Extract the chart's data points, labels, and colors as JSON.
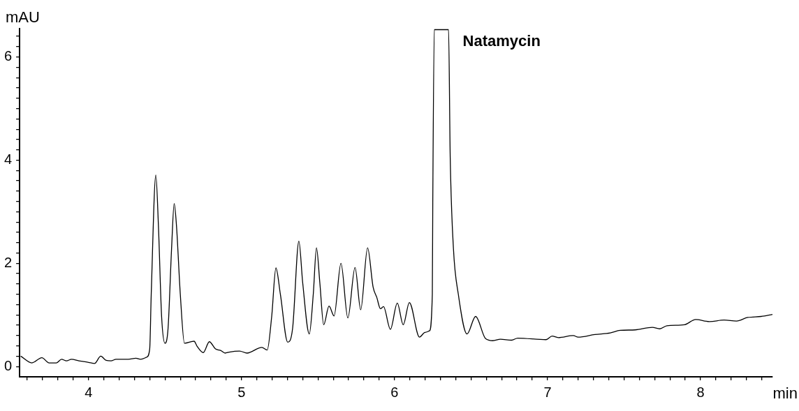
{
  "chart_data": {
    "type": "line",
    "xlabel": "min",
    "ylabel": "mAU",
    "x": [
      3.557,
      3.63,
      3.695,
      3.743,
      3.79,
      3.824,
      3.856,
      3.889,
      3.937,
      4.0,
      4.04,
      4.08,
      4.115,
      4.147,
      4.18,
      4.26,
      4.31,
      4.34,
      4.38,
      4.4,
      4.41,
      4.44,
      4.457,
      4.478,
      4.5,
      4.52,
      4.543,
      4.56,
      4.575,
      4.6,
      4.627,
      4.69,
      4.71,
      4.75,
      4.79,
      4.83,
      4.865,
      4.893,
      4.92,
      4.987,
      5.036,
      5.133,
      5.168,
      5.197,
      5.225,
      5.254,
      5.302,
      5.334,
      5.375,
      5.4,
      5.443,
      5.469,
      5.49,
      5.512,
      5.537,
      5.572,
      5.605,
      5.65,
      5.695,
      5.742,
      5.779,
      5.824,
      5.86,
      5.884,
      5.908,
      5.928,
      5.973,
      6.018,
      6.057,
      6.097,
      6.163,
      6.199,
      6.228,
      6.247,
      6.25,
      6.26,
      6.353,
      6.364,
      6.385,
      6.417,
      6.474,
      6.53,
      6.595,
      6.643,
      6.692,
      6.765,
      6.805,
      6.99,
      7.03,
      7.07,
      7.168,
      7.2,
      7.31,
      7.41,
      7.475,
      7.572,
      7.685,
      7.733,
      7.78,
      7.895,
      7.968,
      8.057,
      8.154,
      8.235,
      8.308,
      8.396,
      8.47
    ],
    "values": [
      0.2,
      0.07,
      0.17,
      0.07,
      0.07,
      0.14,
      0.11,
      0.14,
      0.11,
      0.08,
      0.06,
      0.2,
      0.12,
      0.11,
      0.14,
      0.14,
      0.16,
      0.14,
      0.18,
      0.34,
      1.4,
      3.71,
      2.73,
      0.96,
      0.45,
      0.74,
      2.29,
      3.16,
      2.73,
      1.4,
      0.45,
      0.49,
      0.39,
      0.27,
      0.48,
      0.34,
      0.31,
      0.26,
      0.28,
      0.3,
      0.26,
      0.37,
      0.32,
      0.96,
      1.91,
      1.4,
      0.47,
      0.74,
      2.43,
      1.62,
      0.63,
      1.4,
      2.3,
      1.62,
      0.81,
      1.17,
      0.98,
      2.0,
      0.94,
      1.92,
      1.1,
      2.3,
      1.54,
      1.34,
      1.12,
      1.16,
      0.72,
      1.23,
      0.81,
      1.24,
      0.57,
      0.66,
      0.69,
      1.4,
      3.17,
      6.53,
      6.53,
      4.05,
      2.29,
      1.4,
      0.63,
      0.97,
      0.54,
      0.5,
      0.53,
      0.51,
      0.55,
      0.52,
      0.59,
      0.56,
      0.6,
      0.57,
      0.62,
      0.65,
      0.7,
      0.71,
      0.76,
      0.73,
      0.79,
      0.81,
      0.91,
      0.87,
      0.9,
      0.88,
      0.95,
      0.97,
      1.01
    ],
    "color": "#000000",
    "marker": "none",
    "line_style": "solid",
    "grid": false,
    "legend": false,
    "xlim": [
      3.55,
      8.47
    ],
    "ylim": [
      -0.2,
      6.55
    ],
    "xticks": [
      {
        "value": 3.6,
        "label": null
      },
      {
        "value": 3.7,
        "label": null
      },
      {
        "value": 3.8,
        "label": null
      },
      {
        "value": 3.9,
        "label": null
      },
      4,
      {
        "value": 4.1,
        "label": null
      },
      {
        "value": 4.2,
        "label": null
      },
      {
        "value": 4.3,
        "label": null
      },
      {
        "value": 4.4,
        "label": null
      },
      {
        "value": 4.5,
        "label": null
      },
      {
        "value": 4.6,
        "label": null
      },
      {
        "value": 4.7,
        "label": null
      },
      {
        "value": 4.8,
        "label": null
      },
      {
        "value": 4.9,
        "label": null
      },
      5,
      {
        "value": 5.1,
        "label": null
      },
      {
        "value": 5.2,
        "label": null
      },
      {
        "value": 5.3,
        "label": null
      },
      {
        "value": 5.4,
        "label": null
      },
      {
        "value": 5.5,
        "label": null
      },
      {
        "value": 5.6,
        "label": null
      },
      {
        "value": 5.7,
        "label": null
      },
      {
        "value": 5.8,
        "label": null
      },
      {
        "value": 5.9,
        "label": null
      },
      6,
      {
        "value": 6.1,
        "label": null
      },
      {
        "value": 6.2,
        "label": null
      },
      {
        "value": 6.3,
        "label": null
      },
      {
        "value": 6.4,
        "label": null
      },
      {
        "value": 6.5,
        "label": null
      },
      {
        "value": 6.6,
        "label": null
      },
      {
        "value": 6.7,
        "label": null
      },
      {
        "value": 6.8,
        "label": null
      },
      {
        "value": 6.9,
        "label": null
      },
      7,
      {
        "value": 7.1,
        "label": null
      },
      {
        "value": 7.2,
        "label": null
      },
      {
        "value": 7.3,
        "label": null
      },
      {
        "value": 7.4,
        "label": null
      },
      {
        "value": 7.5,
        "label": null
      },
      {
        "value": 7.6,
        "label": null
      },
      {
        "value": 7.7,
        "label": null
      },
      {
        "value": 7.8,
        "label": null
      },
      {
        "value": 7.9,
        "label": null
      },
      8,
      {
        "value": 8.1,
        "label": null
      },
      {
        "value": 8.2,
        "label": null
      },
      {
        "value": 8.3,
        "label": null
      },
      {
        "value": 8.4,
        "label": null
      }
    ],
    "yticks": [
      0,
      {
        "value": 0.2,
        "label": null
      },
      {
        "value": 0.4,
        "label": null
      },
      {
        "value": 0.6,
        "label": null
      },
      {
        "value": 0.8,
        "label": null
      },
      {
        "value": 1,
        "label": null
      },
      {
        "value": 1.2,
        "label": null
      },
      {
        "value": 1.4,
        "label": null
      },
      {
        "value": 1.6,
        "label": null
      },
      {
        "value": 1.8,
        "label": null
      },
      2,
      {
        "value": 2.2,
        "label": null
      },
      {
        "value": 2.4,
        "label": null
      },
      {
        "value": 2.6,
        "label": null
      },
      {
        "value": 2.8,
        "label": null
      },
      {
        "value": 3,
        "label": null
      },
      {
        "value": 3.2,
        "label": null
      },
      {
        "value": 3.4,
        "label": null
      },
      {
        "value": 3.6,
        "label": null
      },
      {
        "value": 3.8,
        "label": null
      },
      4,
      {
        "value": 4.2,
        "label": null
      },
      {
        "value": 4.4,
        "label": null
      },
      {
        "value": 4.6,
        "label": null
      },
      {
        "value": 4.8,
        "label": null
      },
      {
        "value": 5,
        "label": null
      },
      {
        "value": 5.2,
        "label": null
      },
      {
        "value": 5.4,
        "label": null
      },
      {
        "value": 5.6,
        "label": null
      },
      {
        "value": 5.8,
        "label": null
      },
      6,
      {
        "value": 6.2,
        "label": null
      },
      {
        "value": 6.4,
        "label": null
      }
    ],
    "annotations": [
      {
        "text": "Natamycin",
        "x": 6.3,
        "y": 6.53
      }
    ]
  }
}
